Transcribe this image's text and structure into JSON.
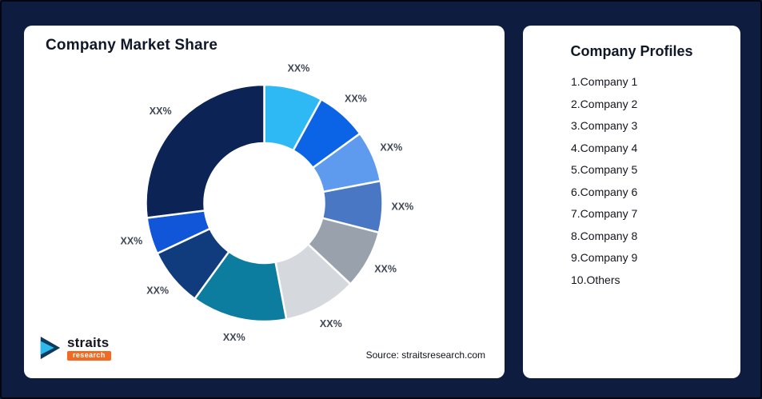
{
  "page": {
    "background": "#0D1C3F"
  },
  "market_share_card": {
    "title": "Company Market Share",
    "source": "Source: straitsresearch.com",
    "logo": {
      "brand": "straits",
      "sub_brand": "research"
    }
  },
  "profiles_card": {
    "title": "Company Profiles",
    "items": [
      "1.Company 1",
      "2.Company 2",
      "3.Company 3",
      "4.Company 4",
      "5.Company 5",
      "6.Company 6",
      "7.Company 7",
      "8.Company 8",
      "9.Company 9",
      "10.Others"
    ]
  },
  "chart_data": {
    "type": "pie",
    "subtype": "donut",
    "title": "Company Market Share",
    "start_angle_deg": 0,
    "direction": "clockwise",
    "inner_radius_ratio": 0.5,
    "label_color": "#3F4756",
    "segments": [
      {
        "label": "XX%",
        "value": 8,
        "color": "#2FB9F4"
      },
      {
        "label": "XX%",
        "value": 7,
        "color": "#0B63E6"
      },
      {
        "label": "XX%",
        "value": 7,
        "color": "#5E9BEE"
      },
      {
        "label": "XX%",
        "value": 7,
        "color": "#4A77C4"
      },
      {
        "label": "XX%",
        "value": 8,
        "color": "#99A1AC"
      },
      {
        "label": "XX%",
        "value": 10,
        "color": "#D5D9DE"
      },
      {
        "label": "XX%",
        "value": 13,
        "color": "#0C7C9F"
      },
      {
        "label": "XX%",
        "value": 8,
        "color": "#103C7E"
      },
      {
        "label": "XX%",
        "value": 5,
        "color": "#1155D8"
      },
      {
        "label": "XX%",
        "value": 27,
        "color": "#0C2355"
      }
    ]
  }
}
